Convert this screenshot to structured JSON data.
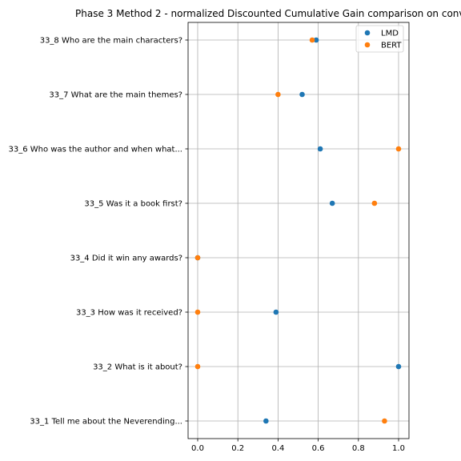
{
  "chart_data": {
    "type": "scatter",
    "title": "Phase 3 Method 2 - normalized Discounted Cumulative Gain comparison on conv",
    "xlabel": "",
    "ylabel": "",
    "xlim": [
      -0.05,
      1.05
    ],
    "xticks": [
      "0.0",
      "0.2",
      "0.4",
      "0.6",
      "0.8",
      "1.0"
    ],
    "grid": true,
    "legend_position": "top-right",
    "categories": [
      "33_8 Who are the main characters?",
      "33_7 What are the main themes?",
      "33_6 Who was the author and when what...",
      "33_5 Was it a book first?",
      "33_4 Did it win any awards?",
      "33_3 How was it received?",
      "33_2 What is it about?",
      "33_1 Tell me about the Neverending..."
    ],
    "series": [
      {
        "name": "LMD",
        "color": "#1f77b4",
        "values": [
          0.59,
          0.52,
          0.61,
          0.67,
          0.0,
          0.39,
          1.0,
          0.34
        ]
      },
      {
        "name": "BERT",
        "color": "#ff7f0e",
        "values": [
          0.57,
          0.4,
          1.0,
          0.88,
          0.0,
          0.0,
          0.0,
          0.93
        ]
      }
    ]
  }
}
